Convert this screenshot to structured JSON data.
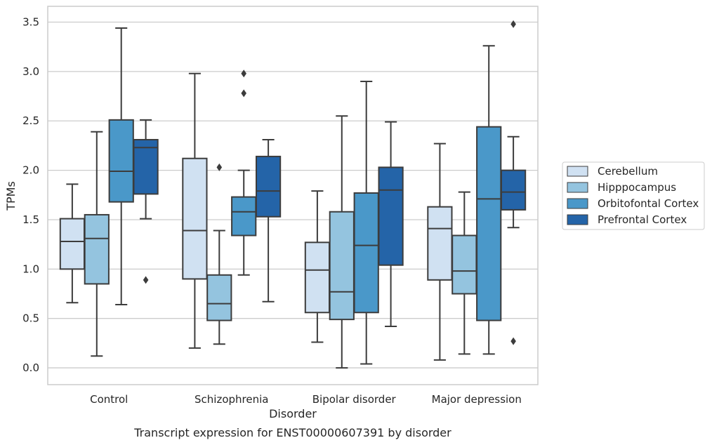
{
  "chart_data": {
    "type": "box",
    "title": "",
    "caption": "Transcript expression for ENST00000607391 by disorder",
    "xlabel": "Disorder",
    "ylabel": "TPMs",
    "ylim": [
      -0.17,
      3.66
    ],
    "yticks": [
      0.0,
      0.5,
      1.0,
      1.5,
      2.0,
      2.5,
      3.0,
      3.5
    ],
    "grid": "horizontal",
    "legend_position": "right",
    "categories": [
      "Control",
      "Schizophrenia",
      "Bipolar disorder",
      "Major depression"
    ],
    "series": [
      {
        "name": "Cerebellum",
        "color": "#d0e1f2",
        "boxes": [
          {
            "whisker_low": 0.66,
            "q1": 1.0,
            "median": 1.28,
            "q3": 1.51,
            "whisker_high": 1.86,
            "outliers": []
          },
          {
            "whisker_low": 0.2,
            "q1": 0.9,
            "median": 1.39,
            "q3": 2.12,
            "whisker_high": 2.98,
            "outliers": []
          },
          {
            "whisker_low": 0.26,
            "q1": 0.56,
            "median": 0.99,
            "q3": 1.27,
            "whisker_high": 1.79,
            "outliers": []
          },
          {
            "whisker_low": 0.08,
            "q1": 0.89,
            "median": 1.41,
            "q3": 1.63,
            "whisker_high": 2.27,
            "outliers": []
          }
        ]
      },
      {
        "name": "Hipppocampus",
        "color": "#94c4df",
        "boxes": [
          {
            "whisker_low": 0.12,
            "q1": 0.85,
            "median": 1.31,
            "q3": 1.55,
            "whisker_high": 2.39,
            "outliers": []
          },
          {
            "whisker_low": 0.24,
            "q1": 0.48,
            "median": 0.65,
            "q3": 0.94,
            "whisker_high": 1.39,
            "outliers": [
              2.03
            ]
          },
          {
            "whisker_low": 0.0,
            "q1": 0.49,
            "median": 0.77,
            "q3": 1.58,
            "whisker_high": 2.55,
            "outliers": []
          },
          {
            "whisker_low": 0.14,
            "q1": 0.75,
            "median": 0.98,
            "q3": 1.34,
            "whisker_high": 1.78,
            "outliers": []
          }
        ]
      },
      {
        "name": "Orbitofontal Cortex",
        "color": "#4a98c9",
        "boxes": [
          {
            "whisker_low": 0.64,
            "q1": 1.68,
            "median": 1.99,
            "q3": 2.51,
            "whisker_high": 3.44,
            "outliers": []
          },
          {
            "whisker_low": 0.94,
            "q1": 1.34,
            "median": 1.58,
            "q3": 1.73,
            "whisker_high": 2.0,
            "outliers": [
              2.78,
              2.98
            ]
          },
          {
            "whisker_low": 0.04,
            "q1": 0.56,
            "median": 1.24,
            "q3": 1.77,
            "whisker_high": 2.9,
            "outliers": []
          },
          {
            "whisker_low": 0.14,
            "q1": 0.48,
            "median": 1.71,
            "q3": 2.44,
            "whisker_high": 3.26,
            "outliers": []
          }
        ]
      },
      {
        "name": "Prefrontal Cortex",
        "color": "#2464a8",
        "boxes": [
          {
            "whisker_low": 1.51,
            "q1": 1.76,
            "median": 2.23,
            "q3": 2.31,
            "whisker_high": 2.51,
            "outliers": [
              0.89
            ]
          },
          {
            "whisker_low": 0.67,
            "q1": 1.53,
            "median": 1.79,
            "q3": 2.14,
            "whisker_high": 2.31,
            "outliers": []
          },
          {
            "whisker_low": 0.42,
            "q1": 1.04,
            "median": 1.8,
            "q3": 2.03,
            "whisker_high": 2.49,
            "outliers": []
          },
          {
            "whisker_low": 1.42,
            "q1": 1.6,
            "median": 1.78,
            "q3": 2.0,
            "whisker_high": 2.34,
            "outliers": [
              0.27,
              3.48
            ]
          }
        ]
      }
    ]
  }
}
